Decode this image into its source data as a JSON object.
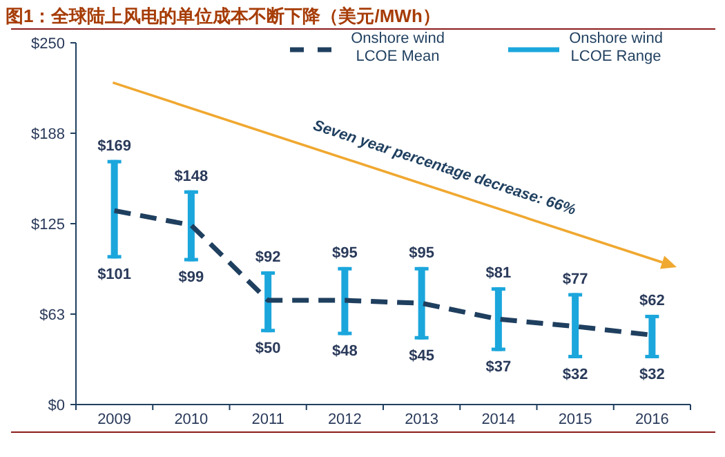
{
  "chart_data": {
    "type": "bar",
    "title": "图1：全球陆上风电的单位成本不断下降（美元/MWh）",
    "categories": [
      "2009",
      "2010",
      "2011",
      "2012",
      "2013",
      "2014",
      "2015",
      "2016"
    ],
    "series": [
      {
        "name": "Onshore wind LCOE Mean",
        "type": "line",
        "color": "#1f3f5f",
        "line_style": "dashed",
        "values": [
          134,
          124,
          72,
          72,
          70,
          59,
          54,
          48
        ]
      },
      {
        "name": "Onshore wind LCOE Range",
        "color": "#1ba6dc",
        "base": [
          101,
          99,
          50,
          48,
          45,
          37,
          32,
          32
        ],
        "values": [
          68,
          49,
          42,
          47,
          50,
          44,
          45,
          30
        ]
      }
    ],
    "ylim": [
      0,
      250
    ],
    "yticks": [
      {
        "value": 0,
        "label": "$0"
      },
      {
        "value": 62.5,
        "label": "$63"
      },
      {
        "value": 125,
        "label": "$125"
      },
      {
        "value": 187.5,
        "label": "$188"
      },
      {
        "value": 250,
        "label": "$250"
      }
    ],
    "legend": "top right",
    "grid": false,
    "annotations": [
      "Seven year percentage decrease: 66%",
      {
        "text": "$169",
        "x": "2009",
        "y": 169
      },
      {
        "text": "$101",
        "x": "2009",
        "y": 101
      },
      {
        "text": "$148",
        "x": "2010",
        "y": 148
      },
      {
        "text": "$99",
        "x": "2010",
        "y": 99
      },
      {
        "text": "$92",
        "x": "2011",
        "y": 92
      },
      {
        "text": "$50",
        "x": "2011",
        "y": 50
      },
      {
        "text": "$95",
        "x": "2012",
        "y": 95
      },
      {
        "text": "$48",
        "x": "2012",
        "y": 48
      },
      {
        "text": "$95",
        "x": "2013",
        "y": 95
      },
      {
        "text": "$45",
        "x": "2013",
        "y": 45
      },
      {
        "text": "$81",
        "x": "2014",
        "y": 81
      },
      {
        "text": "$37",
        "x": "2014",
        "y": 37
      },
      {
        "text": "$77",
        "x": "2015",
        "y": 77
      },
      {
        "text": "$32",
        "x": "2015",
        "y": 32
      },
      {
        "text": "$62",
        "x": "2016",
        "y": 62
      },
      {
        "text": "$32",
        "x": "2016",
        "y": 32
      }
    ]
  }
}
